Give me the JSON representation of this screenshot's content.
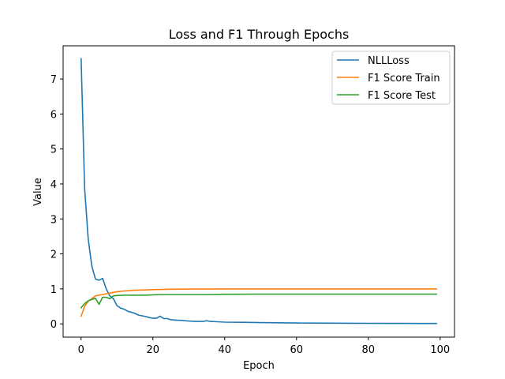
{
  "chart_data": {
    "type": "line",
    "title": "Loss and F1 Through Epochs",
    "xlabel": "Epoch",
    "ylabel": "Value",
    "xlim": [
      -5,
      104
    ],
    "ylim": [
      -0.38,
      7.95
    ],
    "xticks": [
      0,
      20,
      40,
      60,
      80,
      100
    ],
    "yticks": [
      0,
      1,
      2,
      3,
      4,
      5,
      6,
      7
    ],
    "legend_position": "top-right",
    "grid": false,
    "series": [
      {
        "name": "NLLLoss",
        "color": "#1f77b4",
        "points": [
          [
            0,
            7.58
          ],
          [
            1,
            3.85
          ],
          [
            2,
            2.4
          ],
          [
            3,
            1.65
          ],
          [
            4,
            1.28
          ],
          [
            5,
            1.25
          ],
          [
            6,
            1.3
          ],
          [
            7,
            1.0
          ],
          [
            8,
            0.8
          ],
          [
            9,
            0.72
          ],
          [
            10,
            0.52
          ],
          [
            11,
            0.45
          ],
          [
            12,
            0.42
          ],
          [
            13,
            0.36
          ],
          [
            14,
            0.33
          ],
          [
            15,
            0.3
          ],
          [
            16,
            0.25
          ],
          [
            17,
            0.23
          ],
          [
            18,
            0.21
          ],
          [
            19,
            0.18
          ],
          [
            20,
            0.16
          ],
          [
            21,
            0.16
          ],
          [
            22,
            0.22
          ],
          [
            23,
            0.15
          ],
          [
            24,
            0.15
          ],
          [
            25,
            0.12
          ],
          [
            26,
            0.11
          ],
          [
            27,
            0.1
          ],
          [
            28,
            0.1
          ],
          [
            29,
            0.09
          ],
          [
            30,
            0.08
          ],
          [
            32,
            0.07
          ],
          [
            34,
            0.07
          ],
          [
            35,
            0.09
          ],
          [
            36,
            0.07
          ],
          [
            38,
            0.06
          ],
          [
            40,
            0.05
          ],
          [
            45,
            0.045
          ],
          [
            50,
            0.035
          ],
          [
            55,
            0.03
          ],
          [
            60,
            0.025
          ],
          [
            65,
            0.022
          ],
          [
            70,
            0.02
          ],
          [
            75,
            0.018
          ],
          [
            80,
            0.015
          ],
          [
            85,
            0.013
          ],
          [
            90,
            0.012
          ],
          [
            95,
            0.011
          ],
          [
            99,
            0.01
          ]
        ]
      },
      {
        "name": "F1 Score Train",
        "color": "#ff7f0e",
        "points": [
          [
            0,
            0.22
          ],
          [
            1,
            0.5
          ],
          [
            2,
            0.65
          ],
          [
            3,
            0.72
          ],
          [
            4,
            0.8
          ],
          [
            5,
            0.82
          ],
          [
            6,
            0.84
          ],
          [
            7,
            0.86
          ],
          [
            8,
            0.88
          ],
          [
            9,
            0.9
          ],
          [
            10,
            0.92
          ],
          [
            12,
            0.94
          ],
          [
            15,
            0.96
          ],
          [
            18,
            0.97
          ],
          [
            20,
            0.98
          ],
          [
            25,
            0.99
          ],
          [
            30,
            0.995
          ],
          [
            40,
            1.0
          ],
          [
            60,
            1.0
          ],
          [
            80,
            1.0
          ],
          [
            99,
            1.0
          ]
        ]
      },
      {
        "name": "F1 Score Test",
        "color": "#2ca02c",
        "points": [
          [
            0,
            0.46
          ],
          [
            1,
            0.58
          ],
          [
            2,
            0.66
          ],
          [
            3,
            0.7
          ],
          [
            4,
            0.73
          ],
          [
            5,
            0.56
          ],
          [
            6,
            0.76
          ],
          [
            7,
            0.76
          ],
          [
            8,
            0.72
          ],
          [
            9,
            0.8
          ],
          [
            10,
            0.81
          ],
          [
            12,
            0.82
          ],
          [
            15,
            0.82
          ],
          [
            18,
            0.82
          ],
          [
            20,
            0.83
          ],
          [
            22,
            0.84
          ],
          [
            25,
            0.84
          ],
          [
            30,
            0.84
          ],
          [
            35,
            0.84
          ],
          [
            40,
            0.845
          ],
          [
            50,
            0.85
          ],
          [
            60,
            0.85
          ],
          [
            70,
            0.85
          ],
          [
            80,
            0.85
          ],
          [
            90,
            0.85
          ],
          [
            99,
            0.85
          ]
        ]
      }
    ]
  }
}
